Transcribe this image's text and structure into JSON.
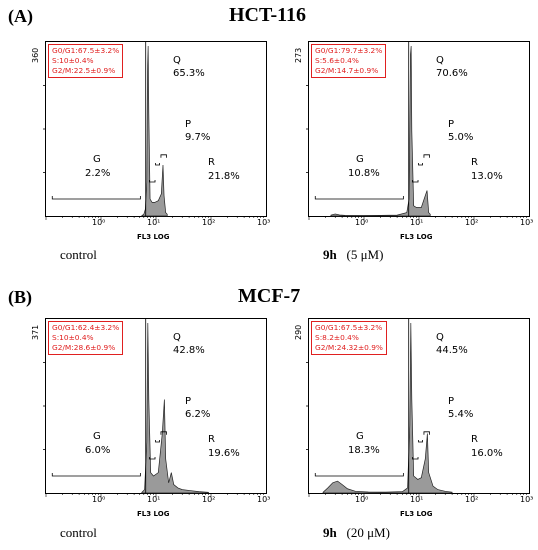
{
  "figure": {
    "sections": [
      {
        "label": "(A)",
        "title": "HCT-116"
      },
      {
        "label": "(B)",
        "title": "MCF-7"
      }
    ]
  },
  "chart_data": [
    {
      "type": "area",
      "ymax": "360",
      "legend": [
        "G0/G1:67.5±3.2%",
        "S:10±0.4%",
        "G2/M:22.5±0.9%"
      ],
      "regions": [
        {
          "name": "Q",
          "pct": "65.3%"
        },
        {
          "name": "P",
          "pct": "9.7%"
        },
        {
          "name": "G",
          "pct": "2.2%"
        },
        {
          "name": "R",
          "pct": "21.8%"
        }
      ],
      "xlabel": "FL3 LOG",
      "caption_bold": "",
      "caption": "control",
      "x_ticks": [
        "10⁰",
        "10¹",
        "10²",
        "10³"
      ],
      "x_scale": "log",
      "xlim": [
        0.1,
        1000
      ],
      "histogram": [
        [
          5.5,
          0.002
        ],
        [
          6.0,
          0.01
        ],
        [
          6.4,
          0.04
        ],
        [
          6.8,
          0.2
        ],
        [
          7.0,
          0.85
        ],
        [
          7.2,
          1.0
        ],
        [
          7.4,
          0.6
        ],
        [
          7.8,
          0.1
        ],
        [
          8.5,
          0.08
        ],
        [
          9.5,
          0.08
        ],
        [
          11,
          0.09
        ],
        [
          12.5,
          0.13
        ],
        [
          13.4,
          0.3
        ],
        [
          14.0,
          0.12
        ],
        [
          15,
          0.02
        ],
        [
          16,
          0.01
        ]
      ]
    },
    {
      "type": "area",
      "ymax": "273",
      "legend": [
        "G0/G1:79.7±3.2%",
        "S:5.6±0.4%",
        "G2/M:14.7±0.9%"
      ],
      "regions": [
        {
          "name": "Q",
          "pct": "70.6%"
        },
        {
          "name": "P",
          "pct": "5.0%"
        },
        {
          "name": "G",
          "pct": "10.8%"
        },
        {
          "name": "R",
          "pct": "13.0%"
        }
      ],
      "xlabel": "FL3 LOG",
      "caption_bold": "9h",
      "caption": "(5 μM)",
      "x_ticks": [
        "10⁰",
        "10¹",
        "10²",
        "10³"
      ],
      "x_scale": "log",
      "xlim": [
        0.1,
        1000
      ],
      "histogram": [
        [
          0.25,
          0.005
        ],
        [
          0.3,
          0.012
        ],
        [
          0.36,
          0.006
        ],
        [
          0.45,
          0.004
        ],
        [
          1,
          0.003
        ],
        [
          2,
          0.004
        ],
        [
          4,
          0.005
        ],
        [
          6.0,
          0.02
        ],
        [
          6.6,
          0.1
        ],
        [
          7.0,
          0.95
        ],
        [
          7.2,
          1.0
        ],
        [
          7.4,
          0.5
        ],
        [
          8,
          0.06
        ],
        [
          9,
          0.05
        ],
        [
          11,
          0.05
        ],
        [
          13,
          0.12
        ],
        [
          14.0,
          0.15
        ],
        [
          15,
          0.02
        ],
        [
          16,
          0.01
        ]
      ]
    },
    {
      "type": "area",
      "ymax": "371",
      "legend": [
        "G0/G1:62.4±3.2%",
        "S:10±0.4%",
        "G2/M:28.6±0.9%"
      ],
      "regions": [
        {
          "name": "Q",
          "pct": "42.8%"
        },
        {
          "name": "P",
          "pct": "6.2%"
        },
        {
          "name": "G",
          "pct": "6.0%"
        },
        {
          "name": "R",
          "pct": "19.6%"
        }
      ],
      "xlabel": "FL3 LOG",
      "caption_bold": "",
      "caption": "control",
      "x_ticks": [
        "10⁰",
        "10¹",
        "10²",
        "10³"
      ],
      "x_scale": "log",
      "xlim": [
        0.1,
        1000
      ],
      "histogram": [
        [
          5.5,
          0.003
        ],
        [
          6.2,
          0.02
        ],
        [
          6.8,
          0.3
        ],
        [
          7.1,
          1.0
        ],
        [
          7.4,
          0.55
        ],
        [
          8,
          0.12
        ],
        [
          9,
          0.1
        ],
        [
          11,
          0.12
        ],
        [
          13,
          0.35
        ],
        [
          14.2,
          0.55
        ],
        [
          15,
          0.2
        ],
        [
          17,
          0.06
        ],
        [
          19,
          0.12
        ],
        [
          21,
          0.05
        ],
        [
          25,
          0.03
        ],
        [
          30,
          0.02
        ],
        [
          40,
          0.015
        ],
        [
          60,
          0.008
        ],
        [
          90,
          0.004
        ]
      ]
    },
    {
      "type": "area",
      "ymax": "290",
      "legend": [
        "G0/G1:67.5±3.2%",
        "S:8.2±0.4%",
        "G2/M:24.32±0.9%"
      ],
      "regions": [
        {
          "name": "Q",
          "pct": "44.5%"
        },
        {
          "name": "P",
          "pct": "5.4%"
        },
        {
          "name": "G",
          "pct": "18.3%"
        },
        {
          "name": "R",
          "pct": "16.0%"
        }
      ],
      "xlabel": "FL3 LOG",
      "caption_bold": "9h",
      "caption": "(20 μM)",
      "x_ticks": [
        "10⁰",
        "10¹",
        "10²",
        "10³"
      ],
      "x_scale": "log",
      "xlim": [
        0.1,
        1000
      ],
      "histogram": [
        [
          0.18,
          0.004
        ],
        [
          0.22,
          0.03
        ],
        [
          0.27,
          0.06
        ],
        [
          0.33,
          0.07
        ],
        [
          0.4,
          0.05
        ],
        [
          0.5,
          0.025
        ],
        [
          0.7,
          0.01
        ],
        [
          1.2,
          0.006
        ],
        [
          2.5,
          0.005
        ],
        [
          5,
          0.008
        ],
        [
          6.2,
          0.03
        ],
        [
          6.8,
          0.4
        ],
        [
          7.1,
          1.0
        ],
        [
          7.4,
          0.55
        ],
        [
          8,
          0.1
        ],
        [
          9.5,
          0.08
        ],
        [
          11,
          0.09
        ],
        [
          13,
          0.2
        ],
        [
          14.2,
          0.35
        ],
        [
          15,
          0.12
        ],
        [
          18,
          0.04
        ],
        [
          22,
          0.02
        ],
        [
          30,
          0.01
        ],
        [
          40,
          0.005
        ]
      ]
    }
  ]
}
